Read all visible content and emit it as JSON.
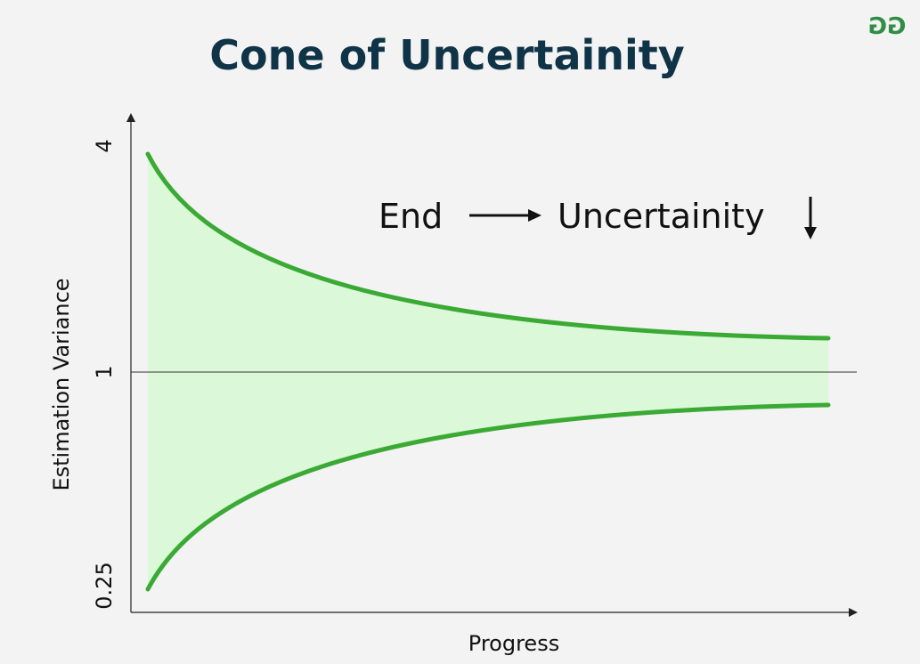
{
  "title": "Cone of Uncertainity",
  "logo_text": "GG",
  "colors": {
    "title": "#0f3347",
    "curve": "#3aaa35",
    "fill": "#dbf8d8",
    "logo": "#2f8d46",
    "background": "#f3f3f3"
  },
  "axes": {
    "y_label": "Estimation Variance",
    "x_label": "Progress",
    "y_ticks": [
      "4",
      "1",
      "0.25"
    ]
  },
  "annotation": {
    "left": "End",
    "right": "Uncertainity"
  }
}
